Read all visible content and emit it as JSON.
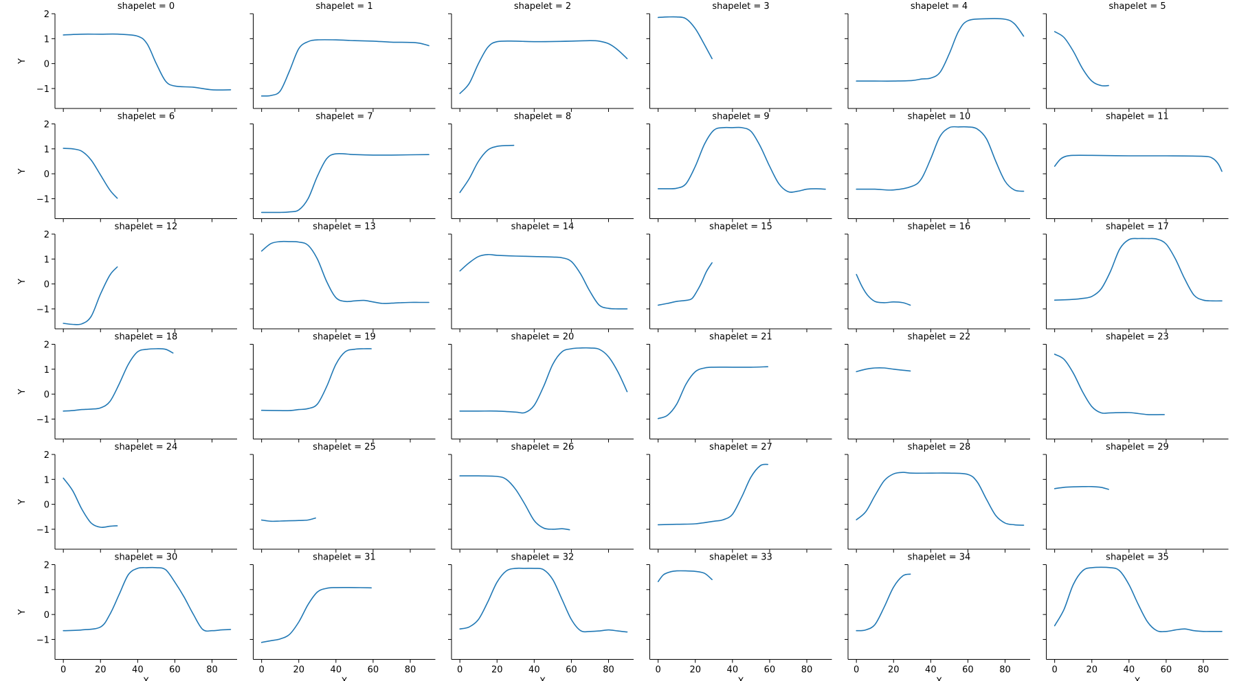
{
  "figure": {
    "xlabel": "X",
    "ylabel": "Y",
    "line_color": "#1f77b4",
    "xticks": [
      0,
      20,
      40,
      60,
      80
    ],
    "yticks": [
      -1,
      0,
      1,
      2
    ]
  },
  "chart_data": {
    "type": "line",
    "shared_axes": true,
    "xlim": [
      -4.5,
      93.5
    ],
    "ylim": [
      -1.8,
      2.0
    ],
    "facets": [
      {
        "title": "shapelet = 0",
        "x": [
          0,
          10,
          20,
          30,
          40,
          45,
          50,
          55,
          60,
          70,
          80,
          90
        ],
        "y": [
          1.15,
          1.18,
          1.18,
          1.18,
          1.1,
          0.8,
          0.0,
          -0.7,
          -0.9,
          -0.95,
          -1.05,
          -1.05
        ]
      },
      {
        "title": "shapelet = 1",
        "x": [
          0,
          5,
          10,
          15,
          20,
          25,
          30,
          40,
          50,
          60,
          70,
          80,
          85,
          90
        ],
        "y": [
          -1.3,
          -1.28,
          -1.1,
          -0.3,
          0.6,
          0.88,
          0.95,
          0.95,
          0.92,
          0.9,
          0.86,
          0.85,
          0.82,
          0.72
        ]
      },
      {
        "title": "shapelet = 2",
        "x": [
          0,
          5,
          10,
          15,
          20,
          30,
          40,
          60,
          70,
          75,
          80,
          85,
          90
        ],
        "y": [
          -1.2,
          -0.8,
          0.0,
          0.65,
          0.88,
          0.9,
          0.88,
          0.9,
          0.92,
          0.9,
          0.8,
          0.55,
          0.2
        ]
      },
      {
        "title": "shapelet = 3",
        "x": [
          0,
          5,
          10,
          15,
          20,
          25,
          29
        ],
        "y": [
          1.85,
          1.87,
          1.87,
          1.8,
          1.4,
          0.75,
          0.2
        ]
      },
      {
        "title": "shapelet = 4",
        "x": [
          0,
          10,
          20,
          30,
          35,
          40,
          45,
          50,
          55,
          60,
          70,
          80,
          85,
          90
        ],
        "y": [
          -0.7,
          -0.7,
          -0.7,
          -0.68,
          -0.62,
          -0.58,
          -0.35,
          0.4,
          1.3,
          1.72,
          1.8,
          1.78,
          1.6,
          1.1
        ]
      },
      {
        "title": "shapelet = 5",
        "x": [
          0,
          5,
          10,
          15,
          20,
          25,
          29
        ],
        "y": [
          1.28,
          1.05,
          0.5,
          -0.2,
          -0.7,
          -0.88,
          -0.88
        ]
      },
      {
        "title": "shapelet = 6",
        "x": [
          0,
          5,
          10,
          15,
          20,
          25,
          29
        ],
        "y": [
          1.02,
          1.0,
          0.9,
          0.55,
          -0.05,
          -0.65,
          -0.98
        ]
      },
      {
        "title": "shapelet = 7",
        "x": [
          0,
          10,
          15,
          20,
          25,
          30,
          35,
          40,
          50,
          60,
          70,
          80,
          90
        ],
        "y": [
          -1.55,
          -1.55,
          -1.53,
          -1.45,
          -1.0,
          -0.1,
          0.6,
          0.8,
          0.77,
          0.75,
          0.75,
          0.76,
          0.77
        ]
      },
      {
        "title": "shapelet = 8",
        "x": [
          0,
          5,
          10,
          15,
          20,
          25,
          29
        ],
        "y": [
          -0.75,
          -0.2,
          0.5,
          0.95,
          1.1,
          1.13,
          1.14
        ]
      },
      {
        "title": "shapelet = 9",
        "x": [
          0,
          5,
          10,
          15,
          20,
          25,
          30,
          35,
          40,
          45,
          50,
          55,
          60,
          65,
          70,
          75,
          80,
          85,
          90
        ],
        "y": [
          -0.6,
          -0.6,
          -0.58,
          -0.4,
          0.3,
          1.2,
          1.75,
          1.85,
          1.85,
          1.85,
          1.7,
          1.1,
          0.3,
          -0.4,
          -0.72,
          -0.7,
          -0.62,
          -0.6,
          -0.62
        ]
      },
      {
        "title": "shapelet = 10",
        "x": [
          0,
          10,
          20,
          30,
          35,
          40,
          45,
          50,
          55,
          60,
          65,
          70,
          75,
          80,
          85,
          90
        ],
        "y": [
          -0.62,
          -0.62,
          -0.65,
          -0.5,
          -0.2,
          0.6,
          1.5,
          1.85,
          1.88,
          1.88,
          1.8,
          1.4,
          0.5,
          -0.3,
          -0.65,
          -0.7
        ]
      },
      {
        "title": "shapelet = 11",
        "x": [
          0,
          3,
          6,
          10,
          20,
          40,
          60,
          80,
          85,
          88,
          90
        ],
        "y": [
          0.3,
          0.58,
          0.7,
          0.74,
          0.74,
          0.72,
          0.72,
          0.7,
          0.62,
          0.4,
          0.1
        ]
      },
      {
        "title": "shapelet = 12",
        "x": [
          0,
          5,
          10,
          15,
          20,
          25,
          29
        ],
        "y": [
          -1.58,
          -1.62,
          -1.6,
          -1.3,
          -0.4,
          0.35,
          0.68
        ]
      },
      {
        "title": "shapelet = 13",
        "x": [
          0,
          5,
          10,
          15,
          20,
          25,
          30,
          35,
          40,
          45,
          50,
          55,
          60,
          65,
          70,
          75,
          80,
          85,
          90
        ],
        "y": [
          1.32,
          1.62,
          1.7,
          1.7,
          1.68,
          1.55,
          1.0,
          0.1,
          -0.55,
          -0.7,
          -0.68,
          -0.66,
          -0.72,
          -0.78,
          -0.77,
          -0.75,
          -0.74,
          -0.74,
          -0.74
        ]
      },
      {
        "title": "shapelet = 14",
        "x": [
          0,
          5,
          10,
          15,
          20,
          30,
          40,
          50,
          55,
          60,
          65,
          70,
          75,
          80,
          85,
          90
        ],
        "y": [
          0.52,
          0.85,
          1.1,
          1.18,
          1.15,
          1.12,
          1.1,
          1.08,
          1.05,
          0.9,
          0.4,
          -0.3,
          -0.85,
          -0.98,
          -1.0,
          -1.0
        ]
      },
      {
        "title": "shapelet = 15",
        "x": [
          0,
          5,
          10,
          15,
          18,
          20,
          23,
          26,
          29
        ],
        "y": [
          -0.85,
          -0.78,
          -0.7,
          -0.66,
          -0.6,
          -0.4,
          0.0,
          0.5,
          0.85
        ]
      },
      {
        "title": "shapelet = 16",
        "x": [
          0,
          3,
          6,
          10,
          15,
          20,
          25,
          29
        ],
        "y": [
          0.38,
          -0.1,
          -0.45,
          -0.7,
          -0.75,
          -0.72,
          -0.75,
          -0.85
        ]
      },
      {
        "title": "shapelet = 17",
        "x": [
          0,
          10,
          15,
          20,
          25,
          30,
          35,
          40,
          45,
          50,
          55,
          60,
          65,
          70,
          75,
          80,
          85,
          90
        ],
        "y": [
          -0.65,
          -0.62,
          -0.58,
          -0.5,
          -0.2,
          0.5,
          1.4,
          1.78,
          1.82,
          1.82,
          1.8,
          1.6,
          1.0,
          0.2,
          -0.45,
          -0.65,
          -0.68,
          -0.68
        ]
      },
      {
        "title": "shapelet = 18",
        "x": [
          0,
          5,
          10,
          15,
          20,
          25,
          30,
          35,
          40,
          45,
          50,
          55,
          59
        ],
        "y": [
          -0.68,
          -0.66,
          -0.62,
          -0.6,
          -0.55,
          -0.3,
          0.4,
          1.2,
          1.7,
          1.8,
          1.82,
          1.8,
          1.65
        ]
      },
      {
        "title": "shapelet = 19",
        "x": [
          0,
          10,
          15,
          20,
          25,
          30,
          35,
          40,
          45,
          50,
          55,
          59
        ],
        "y": [
          -0.65,
          -0.66,
          -0.66,
          -0.62,
          -0.58,
          -0.4,
          0.3,
          1.2,
          1.7,
          1.8,
          1.82,
          1.82
        ]
      },
      {
        "title": "shapelet = 20",
        "x": [
          0,
          10,
          20,
          30,
          35,
          40,
          45,
          50,
          55,
          60,
          65,
          70,
          75,
          80,
          85,
          90
        ],
        "y": [
          -0.68,
          -0.68,
          -0.68,
          -0.72,
          -0.74,
          -0.45,
          0.3,
          1.2,
          1.7,
          1.82,
          1.85,
          1.85,
          1.8,
          1.5,
          0.9,
          0.1
        ]
      },
      {
        "title": "shapelet = 21",
        "x": [
          0,
          5,
          10,
          15,
          20,
          25,
          30,
          40,
          50,
          59
        ],
        "y": [
          -0.98,
          -0.85,
          -0.4,
          0.4,
          0.9,
          1.05,
          1.08,
          1.08,
          1.08,
          1.1
        ]
      },
      {
        "title": "shapelet = 22",
        "x": [
          0,
          5,
          10,
          15,
          20,
          25,
          29
        ],
        "y": [
          0.9,
          1.0,
          1.05,
          1.05,
          1.0,
          0.96,
          0.93
        ]
      },
      {
        "title": "shapelet = 23",
        "x": [
          0,
          5,
          10,
          15,
          20,
          25,
          30,
          40,
          50,
          59
        ],
        "y": [
          1.6,
          1.4,
          0.85,
          0.1,
          -0.5,
          -0.75,
          -0.75,
          -0.74,
          -0.82,
          -0.82
        ]
      },
      {
        "title": "shapelet = 24",
        "x": [
          0,
          5,
          10,
          15,
          20,
          25,
          29
        ],
        "y": [
          1.05,
          0.55,
          -0.2,
          -0.75,
          -0.92,
          -0.88,
          -0.86
        ]
      },
      {
        "title": "shapelet = 25",
        "x": [
          0,
          5,
          10,
          15,
          20,
          25,
          29
        ],
        "y": [
          -0.63,
          -0.68,
          -0.67,
          -0.66,
          -0.65,
          -0.63,
          -0.55
        ]
      },
      {
        "title": "shapelet = 26",
        "x": [
          0,
          10,
          20,
          25,
          30,
          35,
          40,
          45,
          50,
          55,
          59
        ],
        "y": [
          1.14,
          1.14,
          1.12,
          1.0,
          0.6,
          0.0,
          -0.65,
          -0.95,
          -1.0,
          -0.98,
          -1.02
        ]
      },
      {
        "title": "shapelet = 27",
        "x": [
          0,
          10,
          20,
          30,
          35,
          40,
          45,
          50,
          55,
          59
        ],
        "y": [
          -0.82,
          -0.8,
          -0.78,
          -0.68,
          -0.62,
          -0.4,
          0.3,
          1.1,
          1.55,
          1.6
        ]
      },
      {
        "title": "shapelet = 28",
        "x": [
          0,
          5,
          10,
          15,
          20,
          25,
          30,
          40,
          50,
          60,
          65,
          70,
          75,
          80,
          85,
          90
        ],
        "y": [
          -0.62,
          -0.3,
          0.35,
          0.95,
          1.22,
          1.28,
          1.25,
          1.25,
          1.25,
          1.2,
          0.9,
          0.2,
          -0.45,
          -0.75,
          -0.82,
          -0.84
        ]
      },
      {
        "title": "shapelet = 29",
        "x": [
          0,
          5,
          10,
          15,
          20,
          25,
          29
        ],
        "y": [
          0.63,
          0.68,
          0.7,
          0.71,
          0.71,
          0.68,
          0.6
        ]
      },
      {
        "title": "shapelet = 30",
        "x": [
          0,
          10,
          20,
          25,
          30,
          35,
          40,
          45,
          50,
          55,
          60,
          65,
          70,
          75,
          80,
          85,
          90
        ],
        "y": [
          -0.65,
          -0.62,
          -0.5,
          0.0,
          0.8,
          1.6,
          1.85,
          1.88,
          1.88,
          1.8,
          1.3,
          0.7,
          0.0,
          -0.6,
          -0.65,
          -0.62,
          -0.6
        ]
      },
      {
        "title": "shapelet = 31",
        "x": [
          0,
          5,
          10,
          15,
          20,
          25,
          30,
          35,
          40,
          50,
          59
        ],
        "y": [
          -1.12,
          -1.05,
          -0.98,
          -0.8,
          -0.3,
          0.4,
          0.9,
          1.05,
          1.08,
          1.08,
          1.07
        ]
      },
      {
        "title": "shapelet = 32",
        "x": [
          0,
          5,
          10,
          15,
          20,
          25,
          30,
          35,
          40,
          45,
          50,
          55,
          60,
          65,
          70,
          75,
          80,
          85,
          90
        ],
        "y": [
          -0.58,
          -0.5,
          -0.2,
          0.5,
          1.3,
          1.75,
          1.85,
          1.85,
          1.85,
          1.8,
          1.4,
          0.6,
          -0.2,
          -0.65,
          -0.68,
          -0.66,
          -0.62,
          -0.66,
          -0.7
        ]
      },
      {
        "title": "shapelet = 33",
        "x": [
          0,
          3,
          7,
          10,
          15,
          20,
          25,
          29
        ],
        "y": [
          1.32,
          1.6,
          1.72,
          1.75,
          1.75,
          1.73,
          1.65,
          1.4
        ]
      },
      {
        "title": "shapelet = 34",
        "x": [
          0,
          5,
          10,
          15,
          20,
          25,
          29
        ],
        "y": [
          -0.65,
          -0.62,
          -0.4,
          0.3,
          1.1,
          1.55,
          1.62
        ]
      },
      {
        "title": "shapelet = 35",
        "x": [
          0,
          5,
          10,
          15,
          20,
          30,
          35,
          40,
          45,
          50,
          55,
          60,
          65,
          70,
          75,
          80,
          85,
          90
        ],
        "y": [
          -0.45,
          0.2,
          1.2,
          1.75,
          1.88,
          1.88,
          1.75,
          1.2,
          0.4,
          -0.3,
          -0.65,
          -0.68,
          -0.62,
          -0.58,
          -0.65,
          -0.68,
          -0.68,
          -0.68
        ]
      }
    ]
  }
}
